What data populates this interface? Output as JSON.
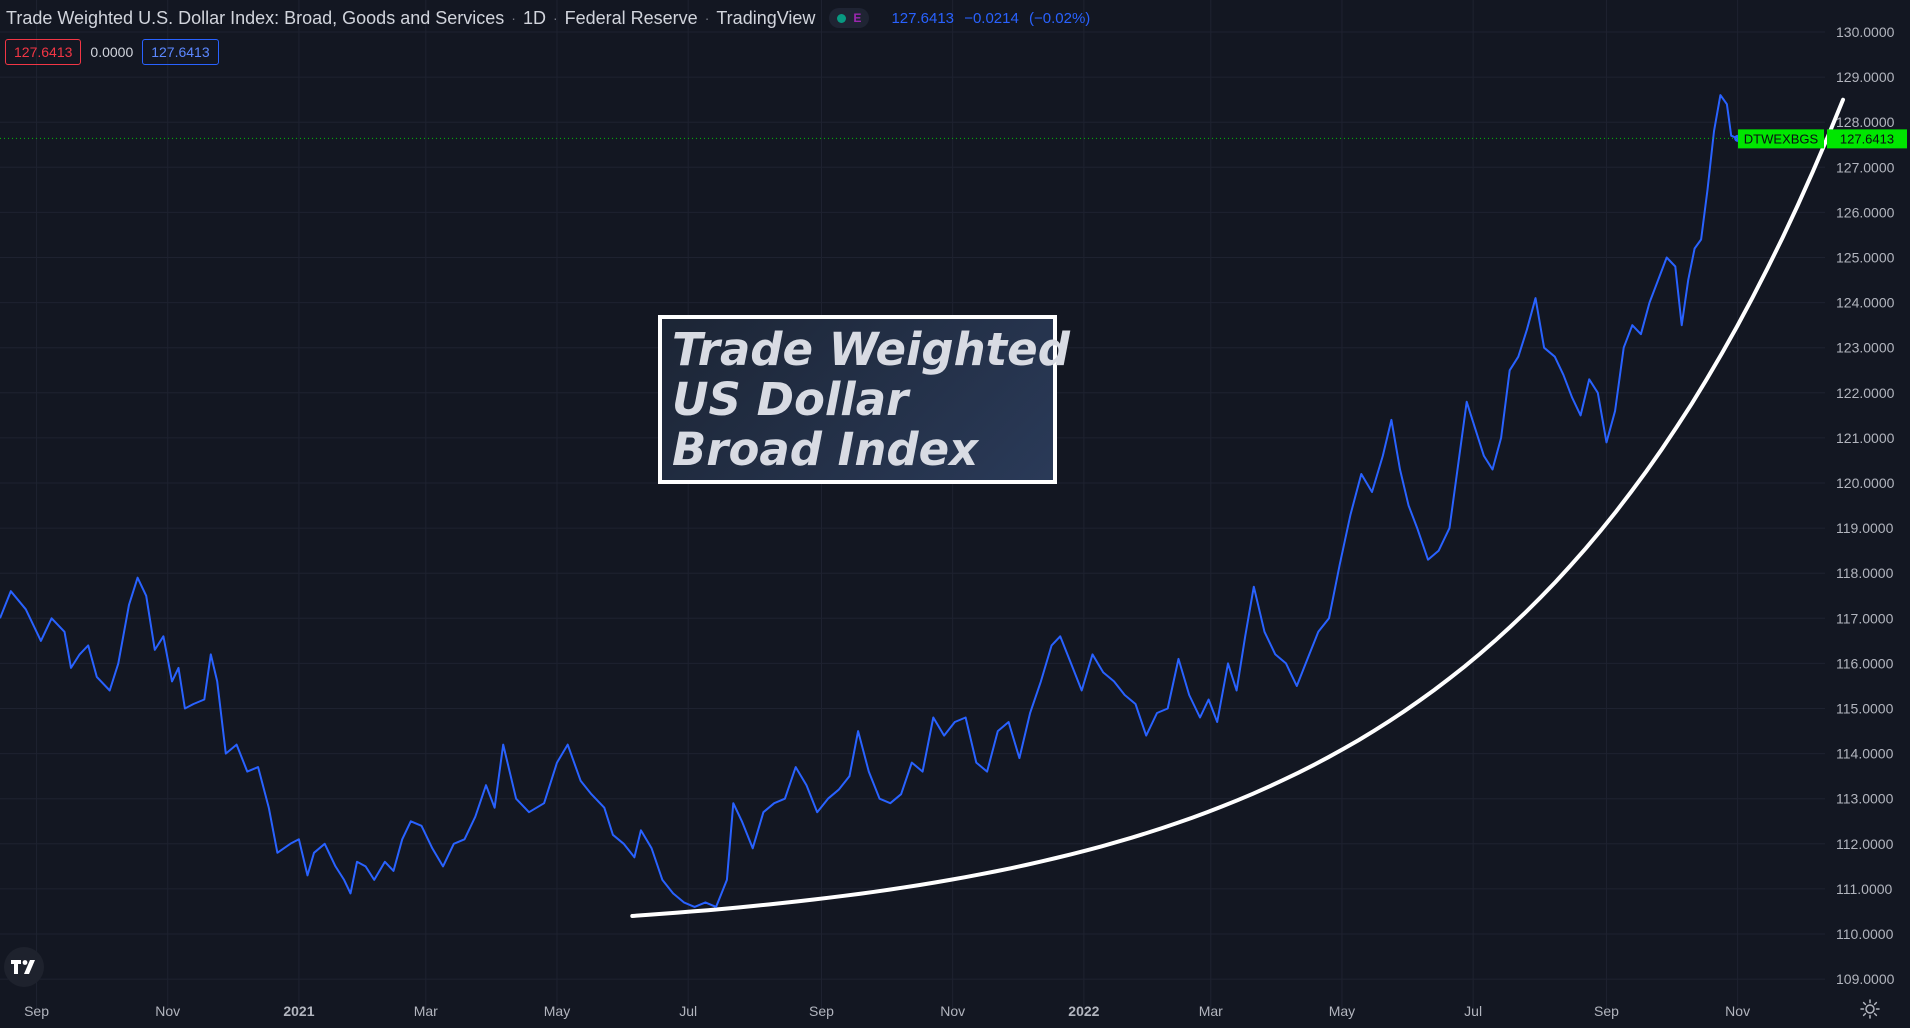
{
  "header": {
    "title": "Trade Weighted U.S. Dollar Index: Broad, Goods and Services",
    "interval": "1D",
    "source": "Federal Reserve",
    "publisher": "TradingView",
    "status_letter": "E",
    "last_value": "127.6413",
    "change": "−0.0214",
    "change_percent": "(−0.02%)"
  },
  "ohlc": {
    "value_red": "127.6413",
    "value_plain": "0.0000",
    "value_blue": "127.6413"
  },
  "annotation": {
    "lines": [
      "Trade Weighted",
      "US Dollar",
      "Broad Index"
    ]
  },
  "price_label": {
    "symbol": "DTWEXBGS",
    "value": "127.6413"
  },
  "colors": {
    "background": "#131722",
    "line": "#2962ff",
    "grid": "#1e2230",
    "curve": "#ffffff",
    "price_badge": "#00e600",
    "axis_text": "#b2b5be"
  },
  "icons": {
    "logo": "tradingview-logo-icon",
    "settings": "gear-icon"
  },
  "chart_data": {
    "type": "line",
    "x_axis_labels": [
      "Sep",
      "Nov",
      "2021",
      "Mar",
      "May",
      "Jul",
      "Sep",
      "Nov",
      "2022",
      "Mar",
      "May",
      "Jul",
      "Sep",
      "Nov"
    ],
    "y_axis_labels": [
      "130.0000",
      "129.0000",
      "128.0000",
      "127.0000",
      "126.0000",
      "125.0000",
      "124.0000",
      "123.0000",
      "122.0000",
      "121.0000",
      "120.0000",
      "119.0000",
      "118.0000",
      "117.0000",
      "116.0000",
      "115.0000",
      "114.0000",
      "113.0000",
      "112.0000",
      "111.0000",
      "110.0000",
      "109.0000"
    ],
    "ylim": [
      109,
      130
    ],
    "xlim": [
      "2020-08-15",
      "2022-11-30"
    ],
    "grid": true,
    "series": [
      {
        "values": [
          [
            "2020-08-15",
            117.0
          ],
          [
            "2020-08-20",
            117.6
          ],
          [
            "2020-08-27",
            117.2
          ],
          [
            "2020-09-03",
            116.5
          ],
          [
            "2020-09-08",
            117.0
          ],
          [
            "2020-09-14",
            116.7
          ],
          [
            "2020-09-17",
            115.9
          ],
          [
            "2020-09-21",
            116.2
          ],
          [
            "2020-09-25",
            116.4
          ],
          [
            "2020-09-29",
            115.7
          ],
          [
            "2020-10-05",
            115.4
          ],
          [
            "2020-10-09",
            116.0
          ],
          [
            "2020-10-14",
            117.3
          ],
          [
            "2020-10-18",
            117.9
          ],
          [
            "2020-10-22",
            117.5
          ],
          [
            "2020-10-26",
            116.3
          ],
          [
            "2020-10-30",
            116.6
          ],
          [
            "2020-11-03",
            115.6
          ],
          [
            "2020-11-06",
            115.9
          ],
          [
            "2020-11-09",
            115.0
          ],
          [
            "2020-11-13",
            115.1
          ],
          [
            "2020-11-18",
            115.2
          ],
          [
            "2020-11-21",
            116.2
          ],
          [
            "2020-11-24",
            115.6
          ],
          [
            "2020-11-28",
            114.0
          ],
          [
            "2020-12-03",
            114.2
          ],
          [
            "2020-12-08",
            113.6
          ],
          [
            "2020-12-13",
            113.7
          ],
          [
            "2020-12-18",
            112.8
          ],
          [
            "2020-12-22",
            111.8
          ],
          [
            "2020-12-28",
            112.0
          ],
          [
            "2021-01-01",
            112.1
          ],
          [
            "2021-01-05",
            111.3
          ],
          [
            "2021-01-08",
            111.8
          ],
          [
            "2021-01-13",
            112.0
          ],
          [
            "2021-01-18",
            111.5
          ],
          [
            "2021-01-22",
            111.2
          ],
          [
            "2021-01-25",
            110.9
          ],
          [
            "2021-01-28",
            111.6
          ],
          [
            "2021-02-01",
            111.5
          ],
          [
            "2021-02-05",
            111.2
          ],
          [
            "2021-02-10",
            111.6
          ],
          [
            "2021-02-14",
            111.4
          ],
          [
            "2021-02-18",
            112.1
          ],
          [
            "2021-02-22",
            112.5
          ],
          [
            "2021-02-27",
            112.4
          ],
          [
            "2021-03-04",
            111.9
          ],
          [
            "2021-03-09",
            111.5
          ],
          [
            "2021-03-14",
            112.0
          ],
          [
            "2021-03-19",
            112.1
          ],
          [
            "2021-03-24",
            112.6
          ],
          [
            "2021-03-29",
            113.3
          ],
          [
            "2021-04-02",
            112.8
          ],
          [
            "2021-04-06",
            114.2
          ],
          [
            "2021-04-12",
            113.0
          ],
          [
            "2021-04-18",
            112.7
          ],
          [
            "2021-04-25",
            112.9
          ],
          [
            "2021-05-01",
            113.8
          ],
          [
            "2021-05-06",
            114.2
          ],
          [
            "2021-05-12",
            113.4
          ],
          [
            "2021-05-17",
            113.1
          ],
          [
            "2021-05-23",
            112.8
          ],
          [
            "2021-05-27",
            112.2
          ],
          [
            "2021-06-01",
            112.0
          ],
          [
            "2021-06-06",
            111.7
          ],
          [
            "2021-06-09",
            112.3
          ],
          [
            "2021-06-14",
            111.9
          ],
          [
            "2021-06-19",
            111.2
          ],
          [
            "2021-06-24",
            110.9
          ],
          [
            "2021-06-29",
            110.7
          ],
          [
            "2021-07-04",
            110.6
          ],
          [
            "2021-07-09",
            110.7
          ],
          [
            "2021-07-14",
            110.6
          ],
          [
            "2021-07-19",
            111.2
          ],
          [
            "2021-07-22",
            112.9
          ],
          [
            "2021-07-26",
            112.5
          ],
          [
            "2021-07-31",
            111.9
          ],
          [
            "2021-08-05",
            112.7
          ],
          [
            "2021-08-10",
            112.9
          ],
          [
            "2021-08-15",
            113.0
          ],
          [
            "2021-08-20",
            113.7
          ],
          [
            "2021-08-25",
            113.3
          ],
          [
            "2021-08-30",
            112.7
          ],
          [
            "2021-09-04",
            113.0
          ],
          [
            "2021-09-09",
            113.2
          ],
          [
            "2021-09-14",
            113.5
          ],
          [
            "2021-09-18",
            114.5
          ],
          [
            "2021-09-23",
            113.6
          ],
          [
            "2021-09-28",
            113.0
          ],
          [
            "2021-10-03",
            112.9
          ],
          [
            "2021-10-08",
            113.1
          ],
          [
            "2021-10-13",
            113.8
          ],
          [
            "2021-10-18",
            113.6
          ],
          [
            "2021-10-23",
            114.8
          ],
          [
            "2021-10-28",
            114.4
          ],
          [
            "2021-11-02",
            114.7
          ],
          [
            "2021-11-07",
            114.8
          ],
          [
            "2021-11-12",
            113.8
          ],
          [
            "2021-11-17",
            113.6
          ],
          [
            "2021-11-22",
            114.5
          ],
          [
            "2021-11-27",
            114.7
          ],
          [
            "2021-12-02",
            113.9
          ],
          [
            "2021-12-07",
            114.9
          ],
          [
            "2021-12-12",
            115.6
          ],
          [
            "2021-12-17",
            116.4
          ],
          [
            "2021-12-21",
            116.6
          ],
          [
            "2021-12-26",
            116.0
          ],
          [
            "2021-12-31",
            115.4
          ],
          [
            "2022-01-05",
            116.2
          ],
          [
            "2022-01-10",
            115.8
          ],
          [
            "2022-01-15",
            115.6
          ],
          [
            "2022-01-20",
            115.3
          ],
          [
            "2022-01-25",
            115.1
          ],
          [
            "2022-01-30",
            114.4
          ],
          [
            "2022-02-04",
            114.9
          ],
          [
            "2022-02-09",
            115.0
          ],
          [
            "2022-02-14",
            116.1
          ],
          [
            "2022-02-19",
            115.3
          ],
          [
            "2022-02-24",
            114.8
          ],
          [
            "2022-02-28",
            115.2
          ],
          [
            "2022-03-04",
            114.7
          ],
          [
            "2022-03-09",
            116.0
          ],
          [
            "2022-03-13",
            115.4
          ],
          [
            "2022-03-17",
            116.6
          ],
          [
            "2022-03-21",
            117.7
          ],
          [
            "2022-03-26",
            116.7
          ],
          [
            "2022-03-31",
            116.2
          ],
          [
            "2022-04-05",
            116.0
          ],
          [
            "2022-04-10",
            115.5
          ],
          [
            "2022-04-15",
            116.1
          ],
          [
            "2022-04-20",
            116.7
          ],
          [
            "2022-04-25",
            117.0
          ],
          [
            "2022-04-30",
            118.2
          ],
          [
            "2022-05-05",
            119.3
          ],
          [
            "2022-05-10",
            120.2
          ],
          [
            "2022-05-15",
            119.8
          ],
          [
            "2022-05-20",
            120.6
          ],
          [
            "2022-05-24",
            121.4
          ],
          [
            "2022-05-28",
            120.3
          ],
          [
            "2022-06-01",
            119.5
          ],
          [
            "2022-06-05",
            119.0
          ],
          [
            "2022-06-10",
            118.3
          ],
          [
            "2022-06-15",
            118.5
          ],
          [
            "2022-06-20",
            119.0
          ],
          [
            "2022-06-24",
            120.4
          ],
          [
            "2022-06-28",
            121.8
          ],
          [
            "2022-07-02",
            121.2
          ],
          [
            "2022-07-06",
            120.6
          ],
          [
            "2022-07-10",
            120.3
          ],
          [
            "2022-07-14",
            121.0
          ],
          [
            "2022-07-18",
            122.5
          ],
          [
            "2022-07-22",
            122.8
          ],
          [
            "2022-07-26",
            123.4
          ],
          [
            "2022-07-30",
            124.1
          ],
          [
            "2022-08-03",
            123.0
          ],
          [
            "2022-08-08",
            122.8
          ],
          [
            "2022-08-12",
            122.4
          ],
          [
            "2022-08-16",
            121.9
          ],
          [
            "2022-08-20",
            121.5
          ],
          [
            "2022-08-24",
            122.3
          ],
          [
            "2022-08-28",
            122.0
          ],
          [
            "2022-09-01",
            120.9
          ],
          [
            "2022-09-05",
            121.6
          ],
          [
            "2022-09-09",
            123.0
          ],
          [
            "2022-09-13",
            123.5
          ],
          [
            "2022-09-17",
            123.3
          ],
          [
            "2022-09-21",
            124.0
          ],
          [
            "2022-09-25",
            124.5
          ],
          [
            "2022-09-29",
            125.0
          ],
          [
            "2022-10-03",
            124.8
          ],
          [
            "2022-10-06",
            123.5
          ],
          [
            "2022-10-09",
            124.5
          ],
          [
            "2022-10-12",
            125.2
          ],
          [
            "2022-10-15",
            125.4
          ],
          [
            "2022-10-18",
            126.5
          ],
          [
            "2022-10-21",
            127.8
          ],
          [
            "2022-10-24",
            128.6
          ],
          [
            "2022-10-27",
            128.4
          ],
          [
            "2022-10-29",
            127.7
          ],
          [
            "2022-11-01",
            127.6413
          ]
        ]
      }
    ],
    "trend_curve": {
      "start": [
        "2021-06-05",
        110.4
      ],
      "end": [
        "2022-12-20",
        128.5
      ]
    }
  }
}
